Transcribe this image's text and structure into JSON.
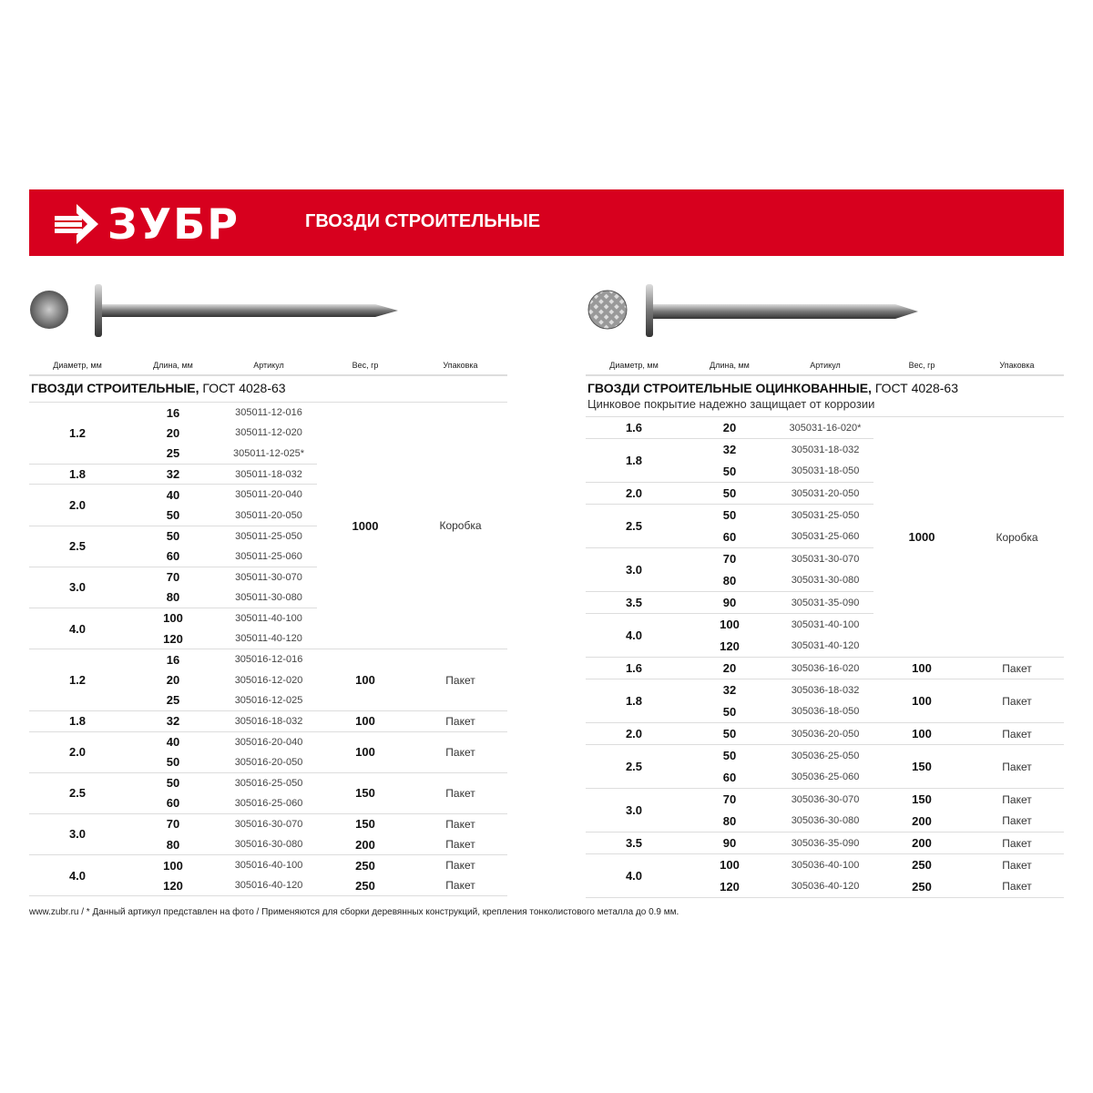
{
  "banner": {
    "brand": "ЗУБР",
    "title": "ГВОЗДИ СТРОИТЕЛЬНЫЕ",
    "color": "#d7001e"
  },
  "columns": [
    "Диаметр, мм",
    "Длина, мм",
    "Артикул",
    "Вес, гр",
    "Упаковка"
  ],
  "left": {
    "title_bold": "ГВОЗДИ СТРОИТЕЛЬНЫЕ,",
    "title_rest": " ГОСТ 4028-63",
    "sections": [
      {
        "w": "1000",
        "pack": "Коробка",
        "groups": [
          {
            "d": "1.2",
            "items": [
              {
                "len": "16",
                "art": "305011-12-016"
              },
              {
                "len": "20",
                "art": "305011-12-020"
              },
              {
                "len": "25",
                "art": "305011-12-025*"
              }
            ]
          },
          {
            "d": "1.8",
            "items": [
              {
                "len": "32",
                "art": "305011-18-032"
              }
            ]
          },
          {
            "d": "2.0",
            "items": [
              {
                "len": "40",
                "art": "305011-20-040"
              },
              {
                "len": "50",
                "art": "305011-20-050"
              }
            ]
          },
          {
            "d": "2.5",
            "items": [
              {
                "len": "50",
                "art": "305011-25-050"
              },
              {
                "len": "60",
                "art": "305011-25-060"
              }
            ]
          },
          {
            "d": "3.0",
            "items": [
              {
                "len": "70",
                "art": "305011-30-070"
              },
              {
                "len": "80",
                "art": "305011-30-080"
              }
            ]
          },
          {
            "d": "4.0",
            "items": [
              {
                "len": "100",
                "art": "305011-40-100"
              },
              {
                "len": "120",
                "art": "305011-40-120"
              }
            ]
          }
        ]
      },
      {
        "groups": [
          {
            "d": "1.2",
            "w": "100",
            "pack": "Пакет",
            "items": [
              {
                "len": "16",
                "art": "305016-12-016"
              },
              {
                "len": "20",
                "art": "305016-12-020"
              },
              {
                "len": "25",
                "art": "305016-12-025"
              }
            ]
          },
          {
            "d": "1.8",
            "w": "100",
            "pack": "Пакет",
            "items": [
              {
                "len": "32",
                "art": "305016-18-032"
              }
            ]
          },
          {
            "d": "2.0",
            "w": "100",
            "pack": "Пакет",
            "items": [
              {
                "len": "40",
                "art": "305016-20-040"
              },
              {
                "len": "50",
                "art": "305016-20-050"
              }
            ]
          },
          {
            "d": "2.5",
            "w": "150",
            "pack": "Пакет",
            "items": [
              {
                "len": "50",
                "art": "305016-25-050"
              },
              {
                "len": "60",
                "art": "305016-25-060"
              }
            ]
          },
          {
            "d": "3.0",
            "items": [
              {
                "len": "70",
                "art": "305016-30-070",
                "w": "150",
                "pack": "Пакет"
              },
              {
                "len": "80",
                "art": "305016-30-080",
                "w": "200",
                "pack": "Пакет"
              }
            ]
          },
          {
            "d": "4.0",
            "items": [
              {
                "len": "100",
                "art": "305016-40-100",
                "w": "250",
                "pack": "Пакет"
              },
              {
                "len": "120",
                "art": "305016-40-120",
                "w": "250",
                "pack": "Пакет"
              }
            ]
          }
        ]
      }
    ]
  },
  "right": {
    "title_bold": "ГВОЗДИ СТРОИТЕЛЬНЫЕ ОЦИНКОВАННЫЕ,",
    "title_rest": " ГОСТ 4028-63",
    "subtitle": "Цинковое покрытие надежно защищает от коррозии",
    "sections": [
      {
        "w": "1000",
        "pack": "Коробка",
        "groups": [
          {
            "d": "1.6",
            "items": [
              {
                "len": "20",
                "art": "305031-16-020*"
              }
            ]
          },
          {
            "d": "1.8",
            "items": [
              {
                "len": "32",
                "art": "305031-18-032"
              },
              {
                "len": "50",
                "art": "305031-18-050"
              }
            ]
          },
          {
            "d": "2.0",
            "items": [
              {
                "len": "50",
                "art": "305031-20-050"
              }
            ]
          },
          {
            "d": "2.5",
            "items": [
              {
                "len": "50",
                "art": "305031-25-050"
              },
              {
                "len": "60",
                "art": "305031-25-060"
              }
            ]
          },
          {
            "d": "3.0",
            "items": [
              {
                "len": "70",
                "art": "305031-30-070"
              },
              {
                "len": "80",
                "art": "305031-30-080"
              }
            ]
          },
          {
            "d": "3.5",
            "items": [
              {
                "len": "90",
                "art": "305031-35-090"
              }
            ]
          },
          {
            "d": "4.0",
            "items": [
              {
                "len": "100",
                "art": "305031-40-100"
              },
              {
                "len": "120",
                "art": "305031-40-120"
              }
            ]
          }
        ]
      },
      {
        "groups": [
          {
            "d": "1.6",
            "w": "100",
            "pack": "Пакет",
            "items": [
              {
                "len": "20",
                "art": "305036-16-020"
              }
            ]
          },
          {
            "d": "1.8",
            "w": "100",
            "pack": "Пакет",
            "items": [
              {
                "len": "32",
                "art": "305036-18-032"
              },
              {
                "len": "50",
                "art": "305036-18-050"
              }
            ]
          },
          {
            "d": "2.0",
            "w": "100",
            "pack": "Пакет",
            "items": [
              {
                "len": "50",
                "art": "305036-20-050"
              }
            ]
          },
          {
            "d": "2.5",
            "w": "150",
            "pack": "Пакет",
            "items": [
              {
                "len": "50",
                "art": "305036-25-050"
              },
              {
                "len": "60",
                "art": "305036-25-060"
              }
            ]
          },
          {
            "d": "3.0",
            "items": [
              {
                "len": "70",
                "art": "305036-30-070",
                "w": "150",
                "pack": "Пакет"
              },
              {
                "len": "80",
                "art": "305036-30-080",
                "w": "200",
                "pack": "Пакет"
              }
            ]
          },
          {
            "d": "3.5",
            "w": "200",
            "pack": "Пакет",
            "items": [
              {
                "len": "90",
                "art": "305036-35-090"
              }
            ]
          },
          {
            "d": "4.0",
            "items": [
              {
                "len": "100",
                "art": "305036-40-100",
                "w": "250",
                "pack": "Пакет"
              },
              {
                "len": "120",
                "art": "305036-40-120",
                "w": "250",
                "pack": "Пакет"
              }
            ]
          }
        ]
      }
    ]
  },
  "footer": "www.zubr.ru  /  * Данный артикул представлен на фото  /  Применяются для сборки деревянных конструкций, крепления тонколистового металла до 0.9 мм."
}
